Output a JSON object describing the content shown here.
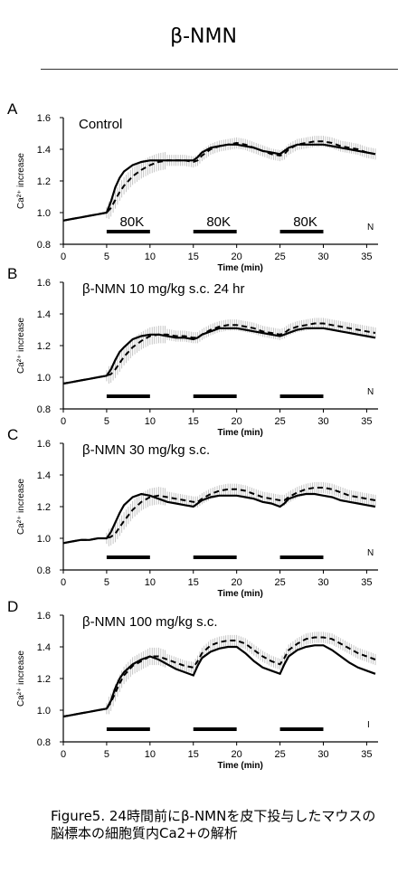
{
  "page": {
    "title": "β-NMN",
    "caption": "Figure5. 24時間前にβ-NMNを皮下投与したマウスの脳標本の細胞質内Ca2+の解析"
  },
  "chart_data": [
    {
      "panel": "A",
      "type": "line",
      "annotation": "Control",
      "stim_label": "80K",
      "corner_label": "N",
      "xlabel": "Time (min)",
      "ylabel": "Ca²⁺ increase",
      "xlim": [
        0,
        36
      ],
      "ylim": [
        0.8,
        1.6
      ],
      "xticks": [
        0,
        5,
        10,
        15,
        20,
        25,
        30,
        35
      ],
      "yticks": [
        0.8,
        1.0,
        1.2,
        1.4,
        1.6
      ],
      "stimulus_bars": [
        [
          5,
          10
        ],
        [
          15,
          20
        ],
        [
          25,
          30
        ]
      ],
      "series": [
        {
          "style": "solid",
          "x": [
            0,
            1,
            2,
            3,
            4,
            5,
            5.5,
            6,
            6.5,
            7,
            8,
            9,
            10,
            11,
            12,
            13,
            14,
            15,
            15.5,
            16,
            17,
            18,
            19,
            20,
            21,
            22,
            23,
            24,
            25,
            25.5,
            26,
            27,
            28,
            29,
            30,
            31,
            32,
            33,
            34,
            35,
            36
          ],
          "y": [
            0.95,
            0.96,
            0.97,
            0.98,
            0.99,
            1.0,
            1.07,
            1.16,
            1.22,
            1.26,
            1.3,
            1.32,
            1.33,
            1.33,
            1.33,
            1.33,
            1.33,
            1.33,
            1.35,
            1.38,
            1.41,
            1.42,
            1.43,
            1.43,
            1.42,
            1.41,
            1.39,
            1.38,
            1.37,
            1.39,
            1.41,
            1.43,
            1.43,
            1.43,
            1.43,
            1.42,
            1.41,
            1.4,
            1.39,
            1.38,
            1.37
          ]
        },
        {
          "style": "dashed",
          "x": [
            0,
            1,
            2,
            3,
            4,
            5,
            5.5,
            6,
            6.5,
            7,
            8,
            9,
            10,
            11,
            12,
            13,
            14,
            15,
            15.5,
            16,
            17,
            18,
            19,
            20,
            21,
            22,
            23,
            24,
            25,
            25.5,
            26,
            27,
            28,
            29,
            30,
            31,
            32,
            33,
            34,
            35,
            36
          ],
          "y": [
            0.95,
            0.96,
            0.97,
            0.98,
            0.99,
            1.0,
            1.03,
            1.08,
            1.13,
            1.17,
            1.23,
            1.27,
            1.3,
            1.32,
            1.33,
            1.33,
            1.33,
            1.32,
            1.33,
            1.36,
            1.4,
            1.42,
            1.43,
            1.44,
            1.43,
            1.41,
            1.39,
            1.37,
            1.36,
            1.37,
            1.4,
            1.43,
            1.44,
            1.45,
            1.45,
            1.44,
            1.42,
            1.41,
            1.4,
            1.38,
            1.37
          ]
        }
      ]
    },
    {
      "panel": "B",
      "type": "line",
      "annotation": "β-NMN 10 mg/kg s.c. 24 hr",
      "stim_label": "",
      "corner_label": "N",
      "xlabel": "Time (min)",
      "ylabel": "Ca²⁺ increase",
      "xlim": [
        0,
        36
      ],
      "ylim": [
        0.8,
        1.6
      ],
      "xticks": [
        0,
        5,
        10,
        15,
        20,
        25,
        30,
        35
      ],
      "yticks": [
        0.8,
        1.0,
        1.2,
        1.4,
        1.6
      ],
      "stimulus_bars": [
        [
          5,
          10
        ],
        [
          15,
          20
        ],
        [
          25,
          30
        ]
      ],
      "series": [
        {
          "style": "solid",
          "x": [
            0,
            1,
            2,
            3,
            4,
            5,
            5.5,
            6,
            6.5,
            7,
            8,
            9,
            10,
            11,
            12,
            13,
            14,
            15,
            15.5,
            16,
            17,
            18,
            19,
            20,
            21,
            22,
            23,
            24,
            25,
            25.5,
            26,
            27,
            28,
            29,
            30,
            31,
            32,
            33,
            34,
            35,
            36
          ],
          "y": [
            0.96,
            0.97,
            0.98,
            0.99,
            1.0,
            1.01,
            1.05,
            1.11,
            1.16,
            1.19,
            1.24,
            1.26,
            1.27,
            1.27,
            1.26,
            1.25,
            1.25,
            1.24,
            1.25,
            1.27,
            1.29,
            1.31,
            1.31,
            1.31,
            1.3,
            1.29,
            1.28,
            1.27,
            1.26,
            1.27,
            1.28,
            1.3,
            1.31,
            1.31,
            1.31,
            1.3,
            1.29,
            1.28,
            1.27,
            1.26,
            1.25
          ]
        },
        {
          "style": "dashed",
          "x": [
            0,
            1,
            2,
            3,
            4,
            5,
            5.5,
            6,
            6.5,
            7,
            8,
            9,
            10,
            11,
            12,
            13,
            14,
            15,
            15.5,
            16,
            17,
            18,
            19,
            20,
            21,
            22,
            23,
            24,
            25,
            25.5,
            26,
            27,
            28,
            29,
            30,
            31,
            32,
            33,
            34,
            35,
            36
          ],
          "y": [
            0.96,
            0.97,
            0.98,
            0.99,
            1.0,
            1.01,
            1.02,
            1.05,
            1.09,
            1.13,
            1.19,
            1.23,
            1.26,
            1.27,
            1.27,
            1.26,
            1.26,
            1.25,
            1.25,
            1.27,
            1.3,
            1.32,
            1.33,
            1.33,
            1.32,
            1.31,
            1.29,
            1.28,
            1.27,
            1.28,
            1.3,
            1.32,
            1.33,
            1.34,
            1.34,
            1.33,
            1.32,
            1.31,
            1.3,
            1.29,
            1.28
          ]
        }
      ]
    },
    {
      "panel": "C",
      "type": "line",
      "annotation": "β-NMN 30 mg/kg s.c.",
      "stim_label": "",
      "corner_label": "N",
      "xlabel": "Time (min)",
      "ylabel": "Ca²⁺ increase",
      "xlim": [
        0,
        36
      ],
      "ylim": [
        0.8,
        1.6
      ],
      "xticks": [
        0,
        5,
        10,
        15,
        20,
        25,
        30,
        35
      ],
      "yticks": [
        0.8,
        1.0,
        1.2,
        1.4,
        1.6
      ],
      "stimulus_bars": [
        [
          5,
          10
        ],
        [
          15,
          20
        ],
        [
          25,
          30
        ]
      ],
      "series": [
        {
          "style": "solid",
          "x": [
            0,
            1,
            2,
            3,
            4,
            5,
            5.5,
            6,
            6.5,
            7,
            8,
            9,
            10,
            11,
            12,
            13,
            14,
            15,
            15.5,
            16,
            17,
            18,
            19,
            20,
            21,
            22,
            23,
            24,
            25,
            25.5,
            26,
            27,
            28,
            29,
            30,
            31,
            32,
            33,
            34,
            35,
            36
          ],
          "y": [
            0.97,
            0.98,
            0.99,
            0.99,
            1.0,
            1.0,
            1.04,
            1.1,
            1.16,
            1.21,
            1.26,
            1.28,
            1.27,
            1.25,
            1.23,
            1.22,
            1.21,
            1.2,
            1.22,
            1.24,
            1.26,
            1.27,
            1.27,
            1.27,
            1.26,
            1.25,
            1.23,
            1.22,
            1.2,
            1.22,
            1.25,
            1.27,
            1.28,
            1.28,
            1.27,
            1.26,
            1.24,
            1.23,
            1.22,
            1.21,
            1.2
          ]
        },
        {
          "style": "dashed",
          "x": [
            0,
            1,
            2,
            3,
            4,
            5,
            5.5,
            6,
            6.5,
            7,
            8,
            9,
            10,
            11,
            12,
            13,
            14,
            15,
            15.5,
            16,
            17,
            18,
            19,
            20,
            21,
            22,
            23,
            24,
            25,
            25.5,
            26,
            27,
            28,
            29,
            30,
            31,
            32,
            33,
            34,
            35,
            36
          ],
          "y": [
            0.97,
            0.98,
            0.99,
            0.99,
            1.0,
            1.0,
            1.01,
            1.03,
            1.07,
            1.11,
            1.18,
            1.23,
            1.26,
            1.27,
            1.26,
            1.25,
            1.24,
            1.23,
            1.23,
            1.25,
            1.28,
            1.3,
            1.31,
            1.31,
            1.3,
            1.28,
            1.26,
            1.25,
            1.24,
            1.24,
            1.26,
            1.29,
            1.31,
            1.32,
            1.32,
            1.31,
            1.29,
            1.27,
            1.26,
            1.25,
            1.24
          ]
        }
      ]
    },
    {
      "panel": "D",
      "type": "line",
      "annotation": "β-NMN 100 mg/kg s.c.",
      "stim_label": "",
      "corner_label": "I",
      "xlabel": "Time (min)",
      "ylabel": "Ca²⁺ increase",
      "xlim": [
        0,
        36
      ],
      "ylim": [
        0.8,
        1.6
      ],
      "xticks": [
        0,
        5,
        10,
        15,
        20,
        25,
        30,
        35
      ],
      "yticks": [
        0.8,
        1.0,
        1.2,
        1.4,
        1.6
      ],
      "stimulus_bars": [
        [
          5,
          10
        ],
        [
          15,
          20
        ],
        [
          25,
          30
        ]
      ],
      "series": [
        {
          "style": "solid",
          "x": [
            0,
            1,
            2,
            3,
            4,
            5,
            5.5,
            6,
            6.5,
            7,
            8,
            9,
            10,
            11,
            12,
            13,
            14,
            15,
            15.5,
            16,
            17,
            18,
            19,
            20,
            21,
            22,
            23,
            24,
            25,
            25.5,
            26,
            27,
            28,
            29,
            30,
            31,
            32,
            33,
            34,
            35,
            36
          ],
          "y": [
            0.96,
            0.97,
            0.98,
            0.99,
            1.0,
            1.01,
            1.06,
            1.14,
            1.2,
            1.24,
            1.29,
            1.32,
            1.34,
            1.32,
            1.29,
            1.26,
            1.24,
            1.22,
            1.28,
            1.33,
            1.37,
            1.39,
            1.4,
            1.4,
            1.36,
            1.31,
            1.27,
            1.25,
            1.23,
            1.29,
            1.34,
            1.38,
            1.4,
            1.41,
            1.41,
            1.38,
            1.34,
            1.3,
            1.27,
            1.25,
            1.23
          ]
        },
        {
          "style": "dashed",
          "x": [
            0,
            1,
            2,
            3,
            4,
            5,
            5.5,
            6,
            6.5,
            7,
            8,
            9,
            10,
            11,
            12,
            13,
            14,
            15,
            15.5,
            16,
            17,
            18,
            19,
            20,
            21,
            22,
            23,
            24,
            25,
            25.5,
            26,
            27,
            28,
            29,
            30,
            31,
            32,
            33,
            34,
            35,
            36
          ],
          "y": [
            0.96,
            0.97,
            0.98,
            0.99,
            1.0,
            1.01,
            1.05,
            1.11,
            1.17,
            1.22,
            1.28,
            1.31,
            1.34,
            1.34,
            1.32,
            1.3,
            1.28,
            1.27,
            1.31,
            1.36,
            1.41,
            1.43,
            1.44,
            1.44,
            1.42,
            1.38,
            1.34,
            1.31,
            1.29,
            1.33,
            1.38,
            1.42,
            1.45,
            1.46,
            1.46,
            1.45,
            1.42,
            1.39,
            1.36,
            1.34,
            1.32
          ]
        }
      ]
    }
  ]
}
